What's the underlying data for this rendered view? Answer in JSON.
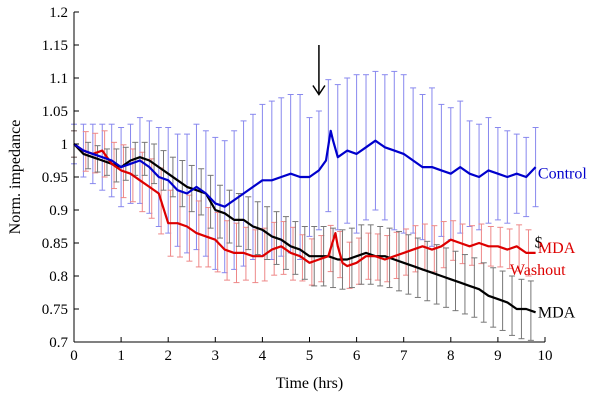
{
  "chart_data": {
    "type": "line",
    "xlabel": "Time (hrs)",
    "ylabel": "Norm. impedance",
    "xlim": [
      0,
      10
    ],
    "ylim": [
      0.7,
      1.2
    ],
    "x_ticks": [
      "0",
      "1",
      "2",
      "3",
      "4",
      "5",
      "6",
      "7",
      "8",
      "9",
      "10"
    ],
    "y_ticks": [
      "0.7",
      "0.75",
      "0.8",
      "0.85",
      "0.9",
      "0.95",
      "1",
      "1.05",
      "1.1",
      "1.15",
      "1.2"
    ],
    "grid": false,
    "legend": "inline labels at right end of each series",
    "annotations": [
      {
        "type": "arrow",
        "x": 5.2,
        "y_from": 1.15,
        "y_to": 1.075
      },
      {
        "type": "text",
        "text": "$",
        "x": 9.78,
        "y": 0.843
      }
    ],
    "series": [
      {
        "name": "Control",
        "color": "#0000cc",
        "error_color": "#8888ee",
        "x": [
          0,
          0.2,
          0.4,
          0.6,
          0.8,
          1.0,
          1.2,
          1.4,
          1.6,
          1.8,
          2.0,
          2.2,
          2.4,
          2.6,
          2.8,
          3.0,
          3.2,
          3.4,
          3.6,
          3.8,
          4.0,
          4.2,
          4.4,
          4.6,
          4.8,
          5.0,
          5.2,
          5.35,
          5.45,
          5.5,
          5.6,
          5.8,
          6.0,
          6.2,
          6.4,
          6.6,
          6.8,
          7.0,
          7.2,
          7.4,
          7.6,
          7.8,
          8.0,
          8.2,
          8.4,
          8.6,
          8.8,
          9.0,
          9.2,
          9.4,
          9.6,
          9.8
        ],
        "y": [
          1.0,
          0.99,
          0.985,
          0.98,
          0.975,
          0.965,
          0.97,
          0.975,
          0.965,
          0.95,
          0.945,
          0.93,
          0.925,
          0.935,
          0.925,
          0.91,
          0.905,
          0.915,
          0.925,
          0.935,
          0.945,
          0.945,
          0.95,
          0.955,
          0.95,
          0.95,
          0.96,
          0.975,
          1.02,
          1.005,
          0.98,
          0.99,
          0.985,
          0.995,
          1.005,
          0.995,
          0.99,
          0.985,
          0.975,
          0.965,
          0.965,
          0.96,
          0.955,
          0.965,
          0.955,
          0.95,
          0.96,
          0.955,
          0.95,
          0.955,
          0.95,
          0.965
        ],
        "error_x": [
          0,
          0.2,
          0.4,
          0.6,
          0.8,
          1.0,
          1.2,
          1.4,
          1.6,
          1.8,
          2.0,
          2.2,
          2.4,
          2.6,
          2.8,
          3.0,
          3.2,
          3.4,
          3.6,
          3.8,
          4.0,
          4.2,
          4.4,
          4.6,
          4.8,
          5.0,
          5.2,
          5.4,
          5.6,
          5.8,
          6.0,
          6.2,
          6.4,
          6.6,
          6.8,
          7.0,
          7.2,
          7.4,
          7.6,
          7.8,
          8.0,
          8.2,
          8.4,
          8.6,
          8.8,
          9.0,
          9.2,
          9.4,
          9.6,
          9.8
        ],
        "error_y": [
          0.03,
          0.04,
          0.045,
          0.05,
          0.055,
          0.06,
          0.06,
          0.065,
          0.07,
          0.075,
          0.08,
          0.085,
          0.09,
          0.095,
          0.095,
          0.1,
          0.1,
          0.105,
          0.11,
          0.11,
          0.115,
          0.12,
          0.12,
          0.12,
          0.125,
          0.09,
          0.09,
          0.1,
          0.11,
          0.11,
          0.12,
          0.11,
          0.105,
          0.11,
          0.12,
          0.12,
          0.11,
          0.11,
          0.12,
          0.1,
          0.1,
          0.1,
          0.08,
          0.08,
          0.08,
          0.07,
          0.07,
          0.06,
          0.06,
          0.06
        ]
      },
      {
        "name": "MDA Washout",
        "label_lines": [
          "MDA",
          "Washout"
        ],
        "color": "#dd0000",
        "error_color": "#ee8888",
        "x": [
          0,
          0.2,
          0.4,
          0.6,
          0.8,
          1.0,
          1.2,
          1.4,
          1.6,
          1.8,
          2.0,
          2.2,
          2.4,
          2.6,
          2.8,
          3.0,
          3.2,
          3.4,
          3.6,
          3.8,
          4.0,
          4.2,
          4.4,
          4.6,
          4.8,
          5.0,
          5.2,
          5.4,
          5.55,
          5.6,
          5.7,
          5.8,
          6.0,
          6.2,
          6.4,
          6.6,
          6.8,
          7.0,
          7.2,
          7.4,
          7.6,
          7.8,
          8.0,
          8.2,
          8.4,
          8.6,
          8.8,
          9.0,
          9.2,
          9.4,
          9.6,
          9.8
        ],
        "y": [
          1.0,
          0.99,
          0.985,
          0.99,
          0.97,
          0.96,
          0.955,
          0.945,
          0.935,
          0.925,
          0.88,
          0.88,
          0.875,
          0.865,
          0.86,
          0.855,
          0.84,
          0.835,
          0.835,
          0.83,
          0.83,
          0.84,
          0.845,
          0.835,
          0.83,
          0.82,
          0.825,
          0.83,
          0.865,
          0.845,
          0.82,
          0.815,
          0.82,
          0.83,
          0.83,
          0.825,
          0.83,
          0.835,
          0.84,
          0.845,
          0.84,
          0.845,
          0.855,
          0.85,
          0.845,
          0.85,
          0.845,
          0.845,
          0.84,
          0.845,
          0.835,
          0.835
        ],
        "error_x": [
          0,
          0.25,
          0.45,
          0.65,
          0.85,
          1.05,
          1.25,
          1.45,
          1.65,
          1.85,
          2.05,
          2.25,
          2.45,
          2.65,
          2.85,
          3.05,
          3.25,
          3.45,
          3.65,
          3.85,
          4.05,
          4.25,
          4.45,
          4.65,
          4.85,
          5.05,
          5.25,
          5.45,
          5.65,
          5.85,
          6.05,
          6.25,
          6.45,
          6.65,
          6.85,
          7.05,
          7.25,
          7.45,
          7.65,
          7.85,
          8.05,
          8.25,
          8.45,
          8.65,
          8.85,
          9.05,
          9.25,
          9.45,
          9.65
        ],
        "error_y": [
          0.02,
          0.03,
          0.03,
          0.035,
          0.035,
          0.04,
          0.04,
          0.045,
          0.045,
          0.05,
          0.05,
          0.05,
          0.05,
          0.05,
          0.045,
          0.045,
          0.045,
          0.045,
          0.04,
          0.04,
          0.04,
          0.04,
          0.04,
          0.04,
          0.035,
          0.035,
          0.035,
          0.035,
          0.035,
          0.035,
          0.035,
          0.035,
          0.035,
          0.035,
          0.035,
          0.035,
          0.035,
          0.035,
          0.035,
          0.035,
          0.03,
          0.03,
          0.03,
          0.03,
          0.03,
          0.03,
          0.03,
          0.035,
          0.035
        ]
      },
      {
        "name": "MDA",
        "color": "#000000",
        "error_color": "#777777",
        "x": [
          0,
          0.2,
          0.4,
          0.6,
          0.8,
          1.0,
          1.2,
          1.4,
          1.6,
          1.8,
          2.0,
          2.2,
          2.4,
          2.6,
          2.8,
          3.0,
          3.2,
          3.4,
          3.6,
          3.8,
          4.0,
          4.2,
          4.4,
          4.6,
          4.8,
          5.0,
          5.2,
          5.4,
          5.6,
          5.8,
          6.0,
          6.2,
          6.4,
          6.6,
          6.8,
          7.0,
          7.2,
          7.4,
          7.6,
          7.8,
          8.0,
          8.2,
          8.4,
          8.6,
          8.8,
          9.0,
          9.2,
          9.4,
          9.6,
          9.8
        ],
        "y": [
          1.0,
          0.985,
          0.98,
          0.975,
          0.97,
          0.965,
          0.975,
          0.98,
          0.975,
          0.965,
          0.955,
          0.945,
          0.935,
          0.93,
          0.925,
          0.9,
          0.895,
          0.885,
          0.885,
          0.875,
          0.87,
          0.86,
          0.855,
          0.845,
          0.84,
          0.83,
          0.83,
          0.83,
          0.825,
          0.825,
          0.83,
          0.835,
          0.83,
          0.83,
          0.825,
          0.82,
          0.815,
          0.81,
          0.805,
          0.8,
          0.795,
          0.79,
          0.785,
          0.78,
          0.77,
          0.765,
          0.76,
          0.75,
          0.75,
          0.745
        ],
        "error_x": [
          0,
          0.3,
          0.5,
          0.7,
          0.9,
          1.1,
          1.3,
          1.5,
          1.7,
          1.9,
          2.1,
          2.3,
          2.5,
          2.7,
          2.9,
          3.1,
          3.3,
          3.5,
          3.7,
          3.9,
          4.1,
          4.3,
          4.5,
          4.7,
          4.9,
          5.1,
          5.3,
          5.5,
          5.7,
          5.9,
          6.1,
          6.3,
          6.5,
          6.7,
          6.9,
          7.1,
          7.3,
          7.5,
          7.7,
          7.9,
          8.1,
          8.3,
          8.5,
          8.7,
          8.9,
          9.1,
          9.3,
          9.5,
          9.7
        ],
        "error_y": [
          0.02,
          0.02,
          0.02,
          0.02,
          0.025,
          0.025,
          0.025,
          0.025,
          0.03,
          0.03,
          0.03,
          0.035,
          0.035,
          0.035,
          0.04,
          0.04,
          0.04,
          0.04,
          0.04,
          0.04,
          0.04,
          0.04,
          0.04,
          0.04,
          0.04,
          0.045,
          0.045,
          0.045,
          0.045,
          0.045,
          0.045,
          0.045,
          0.045,
          0.045,
          0.045,
          0.045,
          0.045,
          0.045,
          0.045,
          0.045,
          0.045,
          0.045,
          0.045,
          0.045,
          0.045,
          0.045,
          0.045,
          0.045,
          0.045
        ]
      }
    ],
    "label_positions": [
      {
        "series": "Control",
        "x": 9.85,
        "y": 0.955
      },
      {
        "series": "MDA Washout",
        "x": 9.85,
        "y": 0.835
      },
      {
        "series": "MDA",
        "x": 9.85,
        "y": 0.745
      }
    ]
  }
}
